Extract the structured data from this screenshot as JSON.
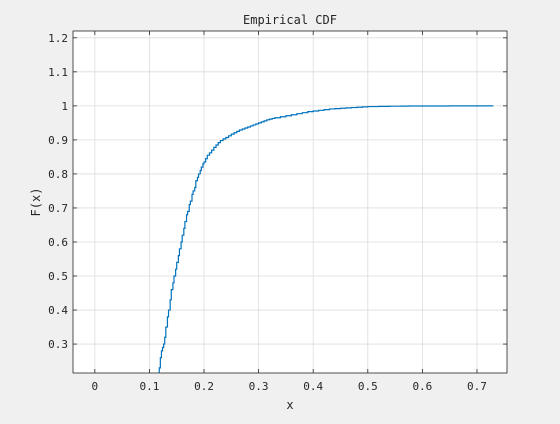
{
  "chart_data": {
    "type": "line",
    "style": "stairs",
    "title": "Empirical CDF",
    "xlabel": "x",
    "ylabel": "F(x)",
    "xlim": [
      -0.04,
      0.755
    ],
    "ylim": [
      0.215,
      1.22
    ],
    "xticks": [
      0,
      0.1,
      0.2,
      0.3,
      0.4,
      0.5,
      0.6,
      0.7
    ],
    "xtick_labels": [
      "0",
      "0.1",
      "0.2",
      "0.3",
      "0.4",
      "0.5",
      "0.6",
      "0.7"
    ],
    "yticks": [
      0.3,
      0.4,
      0.5,
      0.6,
      0.7,
      0.8,
      0.9,
      1.0,
      1.1,
      1.2
    ],
    "ytick_labels": [
      "0.3",
      "0.4",
      "0.5",
      "0.6",
      "0.7",
      "0.8",
      "0.9",
      "1",
      "1.1",
      "1.2"
    ],
    "grid": true,
    "line_color": "#0072bd",
    "series": [
      {
        "x": [
          0.118,
          0.12,
          0.122,
          0.124,
          0.126,
          0.128,
          0.13,
          0.133,
          0.135,
          0.138,
          0.14,
          0.143,
          0.145,
          0.148,
          0.15,
          0.153,
          0.155,
          0.158,
          0.16,
          0.163,
          0.165,
          0.168,
          0.17,
          0.173,
          0.175,
          0.178,
          0.18,
          0.183,
          0.185,
          0.188,
          0.19,
          0.193,
          0.195,
          0.198,
          0.2,
          0.203,
          0.206,
          0.21,
          0.214,
          0.218,
          0.222,
          0.226,
          0.23,
          0.235,
          0.24,
          0.245,
          0.25,
          0.255,
          0.26,
          0.265,
          0.27,
          0.275,
          0.28,
          0.285,
          0.29,
          0.295,
          0.3,
          0.305,
          0.31,
          0.315,
          0.32,
          0.325,
          0.33,
          0.34,
          0.35,
          0.36,
          0.37,
          0.38,
          0.39,
          0.4,
          0.41,
          0.42,
          0.43,
          0.44,
          0.45,
          0.46,
          0.47,
          0.48,
          0.49,
          0.5,
          0.52,
          0.54,
          0.56,
          0.575,
          0.6,
          0.65,
          0.7,
          0.73
        ],
        "y": [
          0.23,
          0.26,
          0.28,
          0.29,
          0.3,
          0.32,
          0.35,
          0.38,
          0.4,
          0.43,
          0.46,
          0.48,
          0.5,
          0.52,
          0.54,
          0.56,
          0.58,
          0.6,
          0.62,
          0.64,
          0.66,
          0.68,
          0.69,
          0.71,
          0.72,
          0.74,
          0.75,
          0.76,
          0.78,
          0.79,
          0.8,
          0.81,
          0.82,
          0.83,
          0.835,
          0.845,
          0.855,
          0.862,
          0.87,
          0.878,
          0.885,
          0.892,
          0.898,
          0.903,
          0.907,
          0.912,
          0.917,
          0.921,
          0.925,
          0.929,
          0.932,
          0.935,
          0.938,
          0.941,
          0.944,
          0.947,
          0.95,
          0.953,
          0.956,
          0.959,
          0.961,
          0.963,
          0.965,
          0.968,
          0.971,
          0.974,
          0.977,
          0.98,
          0.983,
          0.985,
          0.987,
          0.989,
          0.991,
          0.992,
          0.993,
          0.994,
          0.995,
          0.996,
          0.997,
          0.998,
          0.9985,
          0.999,
          0.9993,
          0.9995,
          0.9997,
          0.9999,
          1.0,
          1.0
        ]
      }
    ]
  }
}
